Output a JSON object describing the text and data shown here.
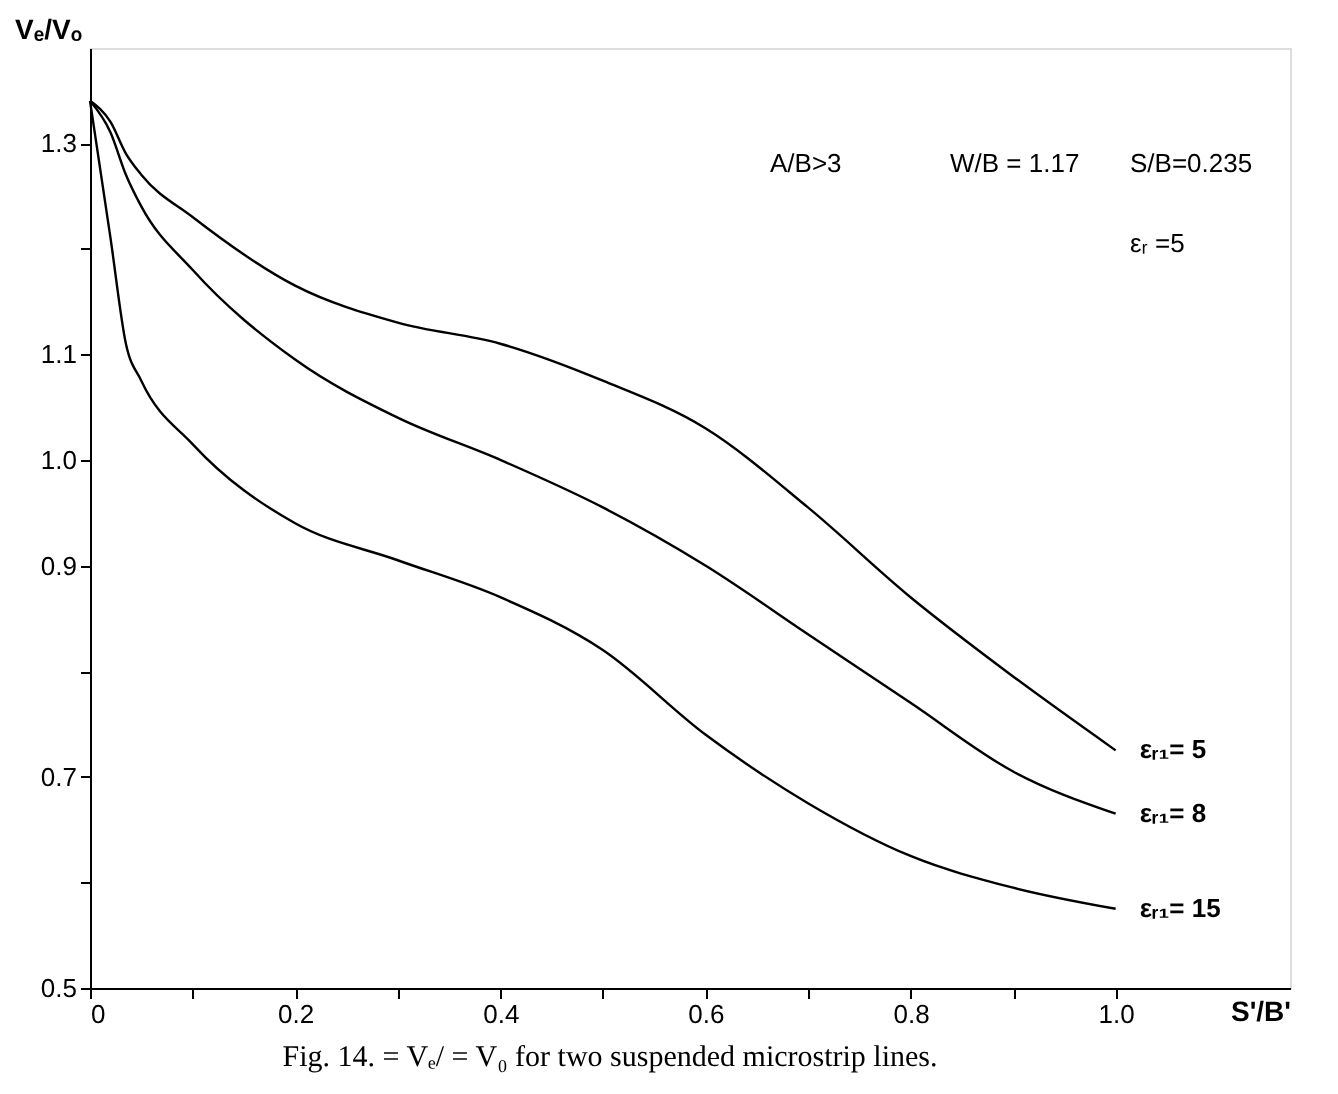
{
  "chart_data": {
    "type": "line",
    "xlabel": "S'/B'",
    "ylabel": "Vₑ/Vₒ",
    "x": [
      0,
      0.02,
      0.035,
      0.05,
      0.1,
      0.2,
      0.3,
      0.4,
      0.5,
      0.6,
      0.7,
      0.8,
      0.9,
      1.0
    ],
    "series": [
      {
        "name": "εᵣ₁= 5",
        "color": "#000000",
        "values": [
          1.34,
          1.32,
          1.29,
          1.27,
          1.23,
          1.165,
          1.13,
          1.11,
          1.075,
          1.03,
          0.955,
          0.87,
          0.795,
          0.725
        ]
      },
      {
        "name": "εᵣ₁= 8",
        "color": "#000000",
        "values": [
          1.34,
          1.31,
          1.27,
          1.24,
          1.18,
          1.095,
          1.04,
          1.0,
          0.955,
          0.9,
          0.835,
          0.77,
          0.705,
          0.665
        ]
      },
      {
        "name": "εᵣ₁= 15",
        "color": "#000000",
        "values": [
          1.34,
          1.21,
          1.11,
          1.075,
          1.015,
          0.94,
          0.905,
          0.87,
          0.82,
          0.74,
          0.675,
          0.625,
          0.595,
          0.575
        ]
      }
    ],
    "xlim": [
      0,
      1.17
    ],
    "ylim": [
      0.5,
      1.39
    ],
    "xticks": [
      0,
      {
        "value": 0.1,
        "label": null
      },
      0.2,
      {
        "value": 0.3,
        "label": null
      },
      0.4,
      {
        "value": 0.5,
        "label": null
      },
      0.6,
      {
        "value": 0.7,
        "label": null
      },
      0.8,
      {
        "value": 0.9,
        "label": null
      },
      {
        "value": 1,
        "label": "1.0"
      }
    ],
    "yticks": [
      0.5,
      {
        "value": 0.6,
        "label": null
      },
      0.7,
      {
        "value": 0.8,
        "label": null
      },
      0.9,
      {
        "value": 1,
        "label": "1.0"
      },
      1.1,
      {
        "value": 1.2,
        "label": null
      },
      1.3
    ],
    "grid": false,
    "marker": "none",
    "line_style": "solid",
    "annotations": [
      "A/B>3",
      "W/B = 1.17",
      "S/B=0.235",
      "εᵣ =5",
      "Fig. 14.    = Vₑ/ = V₀ for two suspended microstrip lines."
    ]
  }
}
